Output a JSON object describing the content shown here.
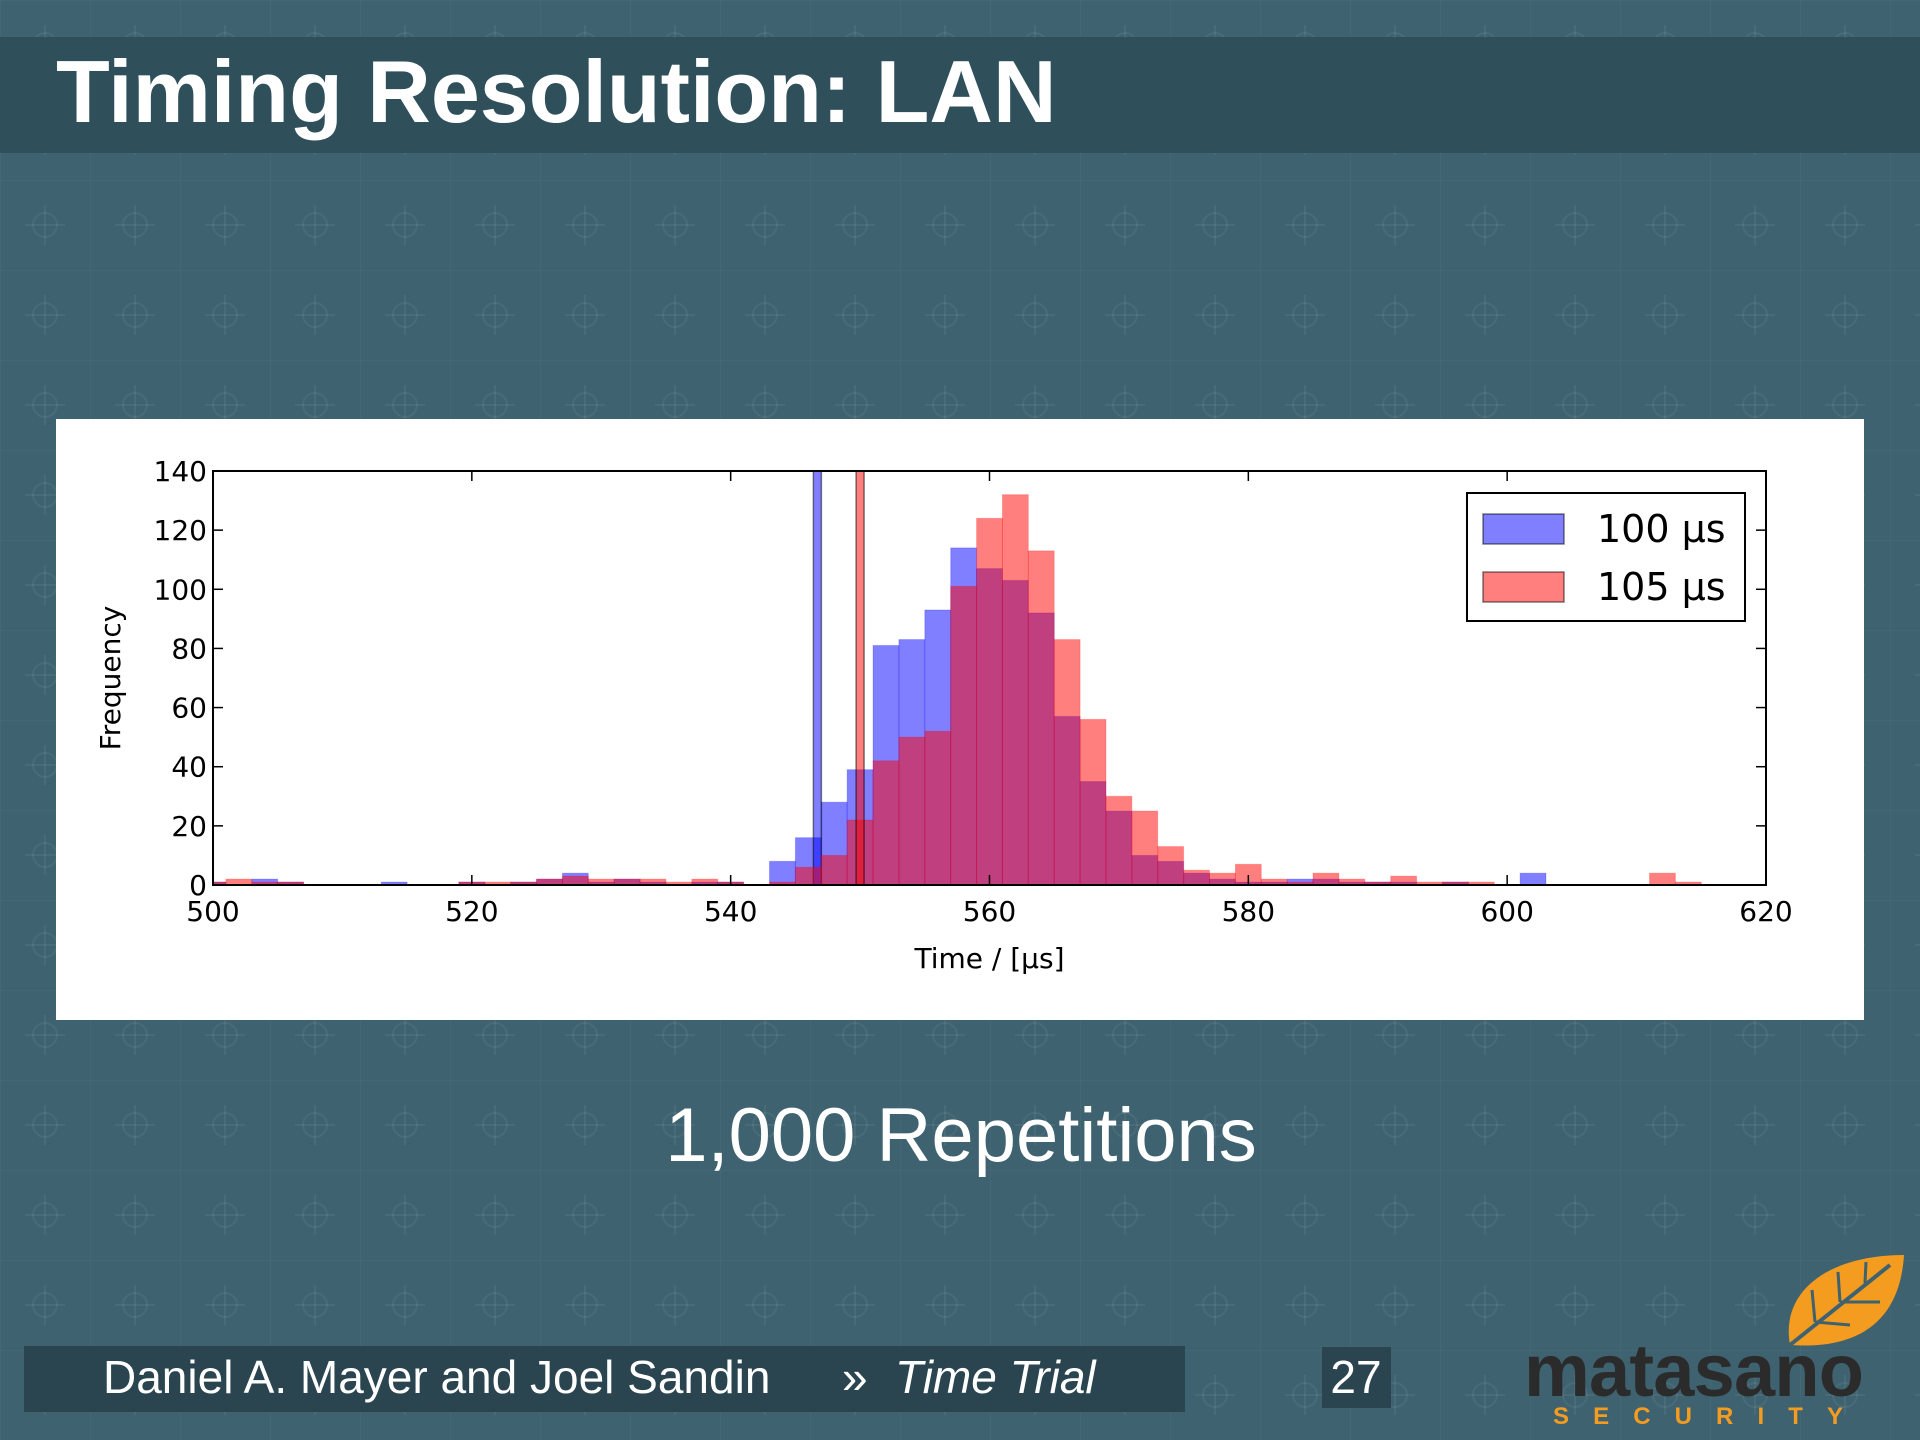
{
  "title": "Timing Resolution: LAN",
  "subtitle": "1,000 Repetitions",
  "footer": {
    "authors": "Daniel A. Mayer and Joel Sandin",
    "separator": "»",
    "talk": "Time Trial",
    "page": "27"
  },
  "logo": {
    "name": "matasano",
    "tagline": "SECURITY"
  },
  "chart_data": {
    "type": "histogram",
    "xlabel": "Time / [µs]",
    "ylabel": "Frequency",
    "bins": [
      499,
      501,
      503,
      505,
      507,
      509,
      511,
      513,
      515,
      517,
      519,
      521,
      523,
      525,
      527,
      529,
      531,
      533,
      535,
      537,
      539,
      541,
      543,
      545,
      547,
      549,
      551,
      553,
      555,
      557,
      559,
      561,
      563,
      565,
      567,
      569,
      571,
      573,
      575,
      577,
      579,
      581,
      583,
      585,
      587,
      589,
      591,
      593,
      595,
      597,
      599,
      601,
      603,
      605,
      607,
      609,
      611,
      613,
      615,
      617
    ],
    "series": [
      {
        "name": "100 µs",
        "color": "#0000ff",
        "vline": 546.7,
        "values": [
          1,
          0,
          2,
          1,
          0,
          0,
          0,
          1,
          0,
          0,
          1,
          0,
          1,
          2,
          4,
          1,
          2,
          1,
          0,
          1,
          1,
          0,
          8,
          16,
          28,
          39,
          81,
          83,
          93,
          114,
          107,
          103,
          92,
          57,
          35,
          25,
          10,
          8,
          4,
          2,
          1,
          1,
          2,
          2,
          1,
          1,
          1,
          0,
          1,
          0,
          0,
          4,
          0,
          0,
          0,
          0,
          0,
          0,
          0
        ]
      },
      {
        "name": "105 µs",
        "color": "#ff0000",
        "vline": 550.0,
        "values": [
          1,
          2,
          1,
          1,
          0,
          0,
          0,
          0,
          0,
          0,
          1,
          1,
          1,
          2,
          3,
          2,
          2,
          2,
          1,
          2,
          1,
          0,
          1,
          6,
          10,
          22,
          42,
          50,
          52,
          101,
          124,
          132,
          113,
          83,
          56,
          30,
          25,
          13,
          5,
          4,
          7,
          2,
          1,
          4,
          2,
          1,
          3,
          1,
          1,
          1,
          0,
          0,
          0,
          0,
          0,
          0,
          4,
          1,
          0
        ]
      }
    ],
    "xlim": [
      500,
      620
    ],
    "xticks": [
      500,
      520,
      540,
      560,
      580,
      600,
      620
    ],
    "ylim": [
      0,
      140
    ],
    "yticks": [
      0,
      20,
      40,
      60,
      80,
      100,
      120,
      140
    ],
    "alpha": 0.5,
    "legend": "upper right"
  }
}
